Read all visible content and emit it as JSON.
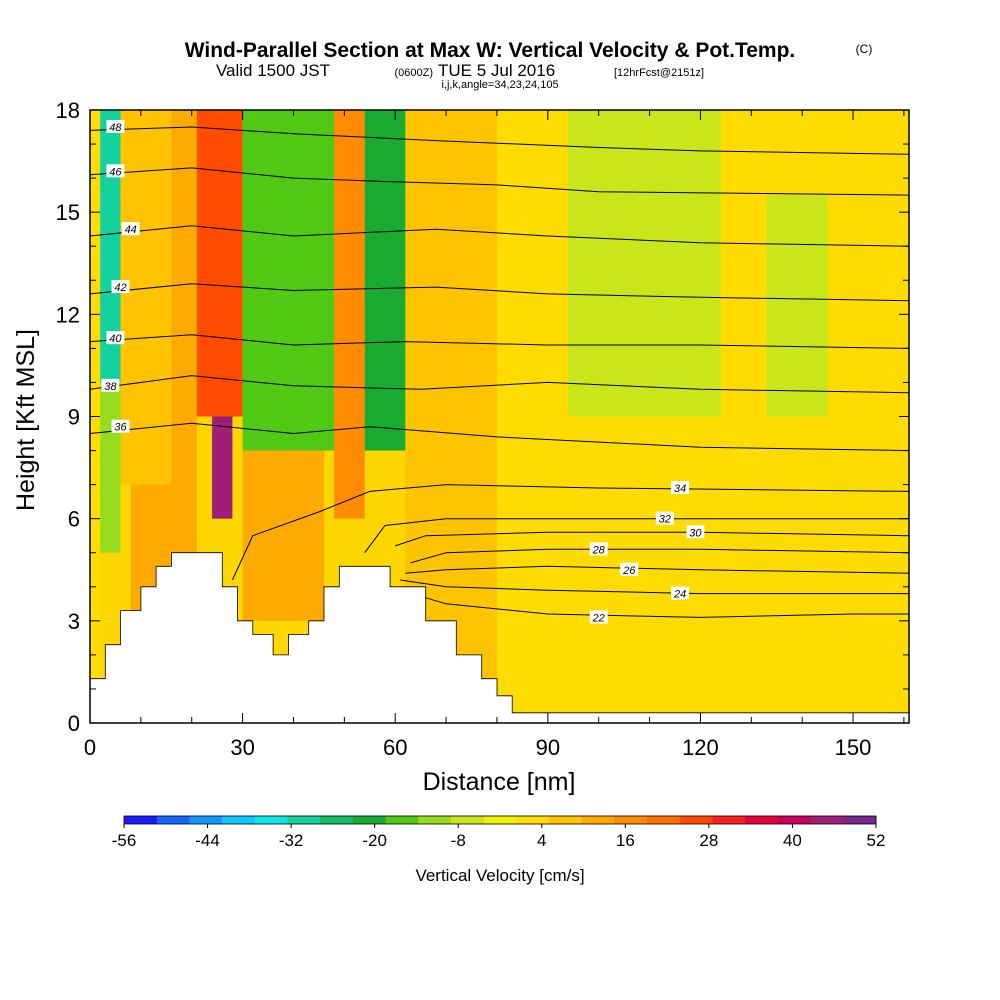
{
  "title": {
    "main": "Wind-Parallel Section at Max W: Vertical Velocity & Pot.Temp.",
    "main_tag": "(C)",
    "valid_prefix": "Valid 1500 JST",
    "valid_utc": "(0600Z)",
    "valid_date": "TUE 5 Jul 2016",
    "forecast": "[12hrFcst@2151z]",
    "indices": "i,j,k,angle=34,23,24,105"
  },
  "chart_data": {
    "type": "heatmap",
    "xlabel": "Distance [nm]",
    "ylabel": "Height [Kft MSL]",
    "xlim": [
      0,
      161
    ],
    "ylim": [
      0,
      18
    ],
    "x_ticks": [
      0,
      30,
      60,
      90,
      120,
      150
    ],
    "y_ticks": [
      0,
      3,
      6,
      9,
      12,
      15,
      18
    ],
    "colorbar": {
      "title": "Vertical Velocity [cm/s]",
      "labels": [
        "-56",
        "-44",
        "-32",
        "-20",
        "-8",
        "4",
        "16",
        "28",
        "40",
        "52"
      ],
      "colors": [
        "#1a1aff",
        "#1464ff",
        "#1496ff",
        "#0fc8ff",
        "#0fe6e6",
        "#14d2a0",
        "#14be64",
        "#19aa32",
        "#50c814",
        "#96dc1e",
        "#c8e619",
        "#f0f000",
        "#ffdc00",
        "#ffc300",
        "#ffaa00",
        "#ff8c00",
        "#ff6e00",
        "#ff4b00",
        "#ff1e1e",
        "#e6003c",
        "#c8005a",
        "#a01e78",
        "#78288c"
      ]
    },
    "w_cells": [
      {
        "x0": 0,
        "x1": 2,
        "y0": 0,
        "y1": 18,
        "w": 4
      },
      {
        "x0": 2,
        "x1": 6,
        "y0": 10,
        "y1": 18,
        "w": -32
      },
      {
        "x0": 2,
        "x1": 6,
        "y0": 5,
        "y1": 10,
        "w": -14
      },
      {
        "x0": 6,
        "x1": 16,
        "y0": 7,
        "y1": 18,
        "w": 6
      },
      {
        "x0": 16,
        "x1": 21,
        "y0": 5,
        "y1": 18,
        "w": 14
      },
      {
        "x0": 21,
        "x1": 30,
        "y0": 9,
        "y1": 18,
        "w": 30
      },
      {
        "x0": 24,
        "x1": 28,
        "y0": 6,
        "y1": 9,
        "w": 48
      },
      {
        "x0": 30,
        "x1": 48,
        "y0": 8,
        "y1": 18,
        "w": -16
      },
      {
        "x0": 48,
        "x1": 54,
        "y0": 6,
        "y1": 18,
        "w": 20
      },
      {
        "x0": 54,
        "x1": 62,
        "y0": 8,
        "y1": 18,
        "w": -24
      },
      {
        "x0": 62,
        "x1": 80,
        "y0": 1,
        "y1": 18,
        "w": 8
      },
      {
        "x0": 80,
        "x1": 161,
        "y0": 0.3,
        "y1": 18,
        "w": 4
      },
      {
        "x0": 94,
        "x1": 124,
        "y0": 9,
        "y1": 18,
        "w": -6
      },
      {
        "x0": 133,
        "x1": 145,
        "y0": 9,
        "y1": 15.5,
        "w": -6
      },
      {
        "x0": 30,
        "x1": 46,
        "y0": 3,
        "y1": 8,
        "w": 10
      },
      {
        "x0": 8,
        "x1": 20,
        "y0": 3,
        "y1": 7,
        "w": 10
      }
    ],
    "terrain_top": [
      [
        0,
        1.3
      ],
      [
        3,
        1.3
      ],
      [
        3,
        2.3
      ],
      [
        6,
        2.3
      ],
      [
        6,
        3.3
      ],
      [
        10,
        3.3
      ],
      [
        10,
        4
      ],
      [
        13,
        4
      ],
      [
        13,
        4.6
      ],
      [
        16,
        4.6
      ],
      [
        16,
        5
      ],
      [
        26,
        5
      ],
      [
        26,
        4
      ],
      [
        29,
        4
      ],
      [
        29,
        3
      ],
      [
        32,
        3
      ],
      [
        32,
        2.6
      ],
      [
        36,
        2.6
      ],
      [
        36,
        2
      ],
      [
        39,
        2
      ],
      [
        39,
        2.6
      ],
      [
        43,
        2.6
      ],
      [
        43,
        3
      ],
      [
        46,
        3
      ],
      [
        46,
        4
      ],
      [
        49,
        4
      ],
      [
        49,
        4.6
      ],
      [
        59,
        4.6
      ],
      [
        59,
        4
      ],
      [
        66,
        4
      ],
      [
        66,
        3
      ],
      [
        72,
        3
      ],
      [
        72,
        2
      ],
      [
        77,
        2
      ],
      [
        77,
        1.3
      ],
      [
        80,
        1.3
      ],
      [
        80,
        0.8
      ],
      [
        83,
        0.8
      ],
      [
        83,
        0.3
      ],
      [
        161,
        0.3
      ]
    ],
    "theta_levels": [
      22,
      24,
      26,
      28,
      30,
      32,
      34,
      36,
      38,
      40,
      42,
      44,
      46,
      48
    ],
    "theta_contours": [
      {
        "value": 22,
        "label_x": 100,
        "label_y": 3.1,
        "points": [
          [
            61,
            3.9
          ],
          [
            70,
            3.5
          ],
          [
            90,
            3.2
          ],
          [
            120,
            3.1
          ],
          [
            150,
            3.2
          ],
          [
            161,
            3.2
          ]
        ]
      },
      {
        "value": 24,
        "label_x": 116,
        "label_y": 3.8,
        "points": [
          [
            61,
            4.2
          ],
          [
            70,
            4.0
          ],
          [
            90,
            3.9
          ],
          [
            120,
            3.8
          ],
          [
            161,
            3.8
          ]
        ]
      },
      {
        "value": 26,
        "label_x": 106,
        "label_y": 4.5,
        "points": [
          [
            62,
            4.4
          ],
          [
            70,
            4.5
          ],
          [
            90,
            4.6
          ],
          [
            120,
            4.5
          ],
          [
            161,
            4.4
          ]
        ]
      },
      {
        "value": 28,
        "label_x": 100,
        "label_y": 5.1,
        "points": [
          [
            63,
            4.7
          ],
          [
            70,
            5.0
          ],
          [
            90,
            5.1
          ],
          [
            120,
            5.1
          ],
          [
            161,
            5.0
          ]
        ]
      },
      {
        "value": 30,
        "label_x": 119,
        "label_y": 5.6,
        "points": [
          [
            60,
            5.2
          ],
          [
            66,
            5.5
          ],
          [
            90,
            5.6
          ],
          [
            120,
            5.6
          ],
          [
            161,
            5.5
          ]
        ]
      },
      {
        "value": 32,
        "label_x": 113,
        "label_y": 6.0,
        "points": [
          [
            54,
            5.0
          ],
          [
            58,
            5.8
          ],
          [
            70,
            6.0
          ],
          [
            100,
            6.0
          ],
          [
            161,
            6.0
          ]
        ]
      },
      {
        "value": 34,
        "label_x": 116,
        "label_y": 6.9,
        "points": [
          [
            28,
            4.2
          ],
          [
            32,
            5.5
          ],
          [
            45,
            6.2
          ],
          [
            55,
            6.8
          ],
          [
            70,
            7.0
          ],
          [
            100,
            6.9
          ],
          [
            161,
            6.8
          ]
        ]
      },
      {
        "value": 36,
        "label_x": 6,
        "label_y": 8.7,
        "points": [
          [
            0,
            8.5
          ],
          [
            20,
            8.8
          ],
          [
            40,
            8.5
          ],
          [
            55,
            8.7
          ],
          [
            80,
            8.4
          ],
          [
            120,
            8.1
          ],
          [
            161,
            8.0
          ]
        ]
      },
      {
        "value": 38,
        "label_x": 4,
        "label_y": 9.9,
        "points": [
          [
            0,
            9.8
          ],
          [
            20,
            10.2
          ],
          [
            40,
            9.9
          ],
          [
            65,
            9.8
          ],
          [
            90,
            10.0
          ],
          [
            120,
            9.8
          ],
          [
            161,
            9.7
          ]
        ]
      },
      {
        "value": 40,
        "label_x": 5,
        "label_y": 11.3,
        "points": [
          [
            0,
            11.2
          ],
          [
            20,
            11.4
          ],
          [
            40,
            11.1
          ],
          [
            62,
            11.2
          ],
          [
            90,
            11.1
          ],
          [
            120,
            11.1
          ],
          [
            161,
            11.0
          ]
        ]
      },
      {
        "value": 42,
        "label_x": 6,
        "label_y": 12.8,
        "points": [
          [
            0,
            12.6
          ],
          [
            20,
            12.9
          ],
          [
            40,
            12.7
          ],
          [
            68,
            12.8
          ],
          [
            90,
            12.6
          ],
          [
            120,
            12.5
          ],
          [
            161,
            12.4
          ]
        ]
      },
      {
        "value": 44,
        "label_x": 8,
        "label_y": 14.5,
        "points": [
          [
            0,
            14.3
          ],
          [
            20,
            14.6
          ],
          [
            40,
            14.3
          ],
          [
            68,
            14.5
          ],
          [
            90,
            14.3
          ],
          [
            120,
            14.1
          ],
          [
            161,
            14.0
          ]
        ]
      },
      {
        "value": 46,
        "label_x": 5,
        "label_y": 16.2,
        "points": [
          [
            0,
            16.1
          ],
          [
            20,
            16.3
          ],
          [
            40,
            16.0
          ],
          [
            58,
            15.9
          ],
          [
            80,
            15.8
          ],
          [
            100,
            15.6
          ],
          [
            161,
            15.5
          ]
        ]
      },
      {
        "value": 48,
        "label_x": 5,
        "label_y": 17.5,
        "points": [
          [
            0,
            17.4
          ],
          [
            20,
            17.5
          ],
          [
            40,
            17.3
          ],
          [
            68,
            17.1
          ],
          [
            100,
            16.9
          ],
          [
            120,
            16.8
          ],
          [
            161,
            16.7
          ]
        ]
      }
    ]
  }
}
